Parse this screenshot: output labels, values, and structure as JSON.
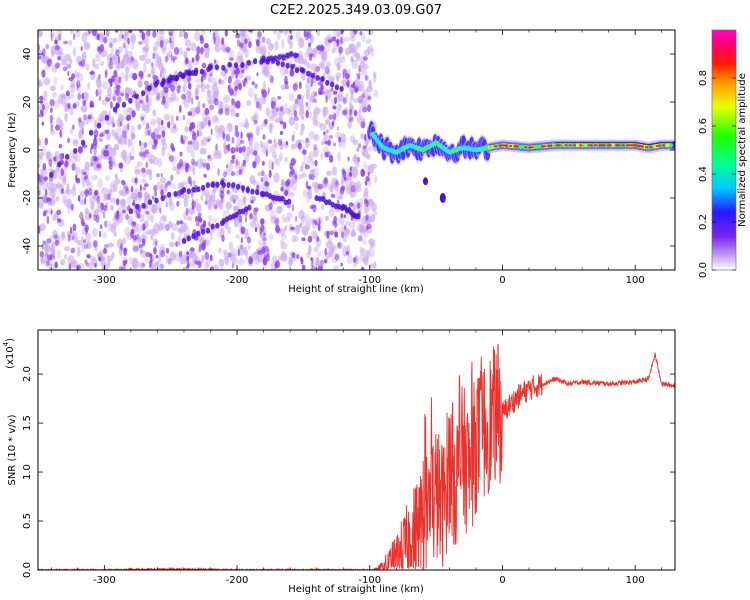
{
  "colors": {
    "trace": "#e8322e",
    "faint": "#c9a8ee",
    "dot": "#8a3df0",
    "dark": "#4b0fd8",
    "axis": "#000000",
    "ridge": "#000000"
  },
  "chart_data": [
    {
      "type": "heatmap",
      "title": "C2E2.2025.349.03.09.G07",
      "xlabel": "Height of straight line (km)",
      "ylabel": "Frequency (Hz)",
      "xlim": [
        -350,
        130
      ],
      "ylim": [
        -50,
        50
      ],
      "xticks": [
        -300,
        -200,
        -100,
        0,
        100
      ],
      "yticks": [
        -40,
        -20,
        0,
        20,
        40
      ],
      "xtick_labels": [
        "-300",
        "-200",
        "-100",
        "0",
        "100"
      ],
      "ytick_labels": [
        "-40",
        "-20",
        "0",
        "20",
        "40"
      ],
      "noise_region_x": [
        -350,
        -100
      ],
      "ridge_x": [
        -100,
        -90,
        -80,
        -70,
        -60,
        -50,
        -40,
        -30,
        -20,
        -10,
        0,
        20,
        40,
        60,
        80,
        100,
        110,
        120,
        130
      ],
      "ridge_y": [
        8,
        1,
        -1,
        2,
        0,
        3,
        -1,
        1,
        0,
        1,
        2,
        1,
        2,
        2,
        2,
        2,
        1,
        2,
        2
      ],
      "colorbar": {
        "label": "Normalized spectral amplitude",
        "range": [
          0,
          1
        ],
        "ticks": [
          0.0,
          0.2,
          0.4,
          0.6,
          0.8
        ],
        "tick_labels": [
          "0.0",
          "0.2",
          "0.4",
          "0.6",
          "0.8"
        ]
      }
    },
    {
      "type": "line",
      "xlabel": "Height of straight line (km)",
      "ylabel": "SNR (10 * v/v)",
      "exponent_label": "(x10",
      "exponent_power": "4",
      "xlim": [
        -350,
        130
      ],
      "ylim": [
        0,
        2.45
      ],
      "xticks": [
        -300,
        -200,
        -100,
        0,
        100
      ],
      "yticks": [
        0.0,
        0.5,
        1.0,
        1.5,
        2.0
      ],
      "xtick_labels": [
        "-300",
        "-200",
        "-100",
        "0",
        "100"
      ],
      "ytick_labels": [
        "0.0",
        "0.5",
        "1.0",
        "1.5",
        "2.0"
      ],
      "series": [
        {
          "name": "SNR",
          "x": [
            -350,
            -300,
            -250,
            -200,
            -150,
            -100,
            -90,
            -80,
            -70,
            -60,
            -50,
            -45,
            -40,
            -35,
            -30,
            -25,
            -20,
            -15,
            -10,
            -5,
            0,
            10,
            20,
            30,
            40,
            50,
            60,
            80,
            100,
            110,
            115,
            120,
            130
          ],
          "y": [
            0.0,
            0.0,
            0.01,
            0.0,
            0.0,
            0.0,
            0.02,
            0.1,
            0.3,
            0.5,
            0.8,
            0.6,
            1.1,
            0.9,
            1.2,
            1.0,
            1.3,
            1.4,
            1.5,
            1.6,
            1.6,
            1.75,
            1.85,
            1.9,
            1.95,
            1.9,
            1.92,
            1.9,
            1.92,
            1.95,
            2.2,
            1.9,
            1.88
          ]
        }
      ]
    }
  ]
}
